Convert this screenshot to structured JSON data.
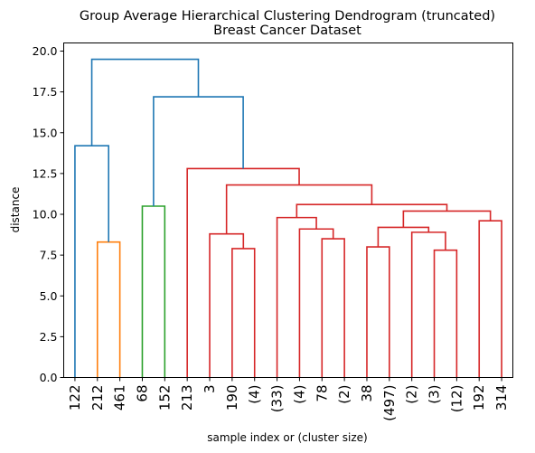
{
  "chart_data": {
    "type": "dendrogram",
    "title": "Group Average Hierarchical Clustering Dendrogram (truncated)",
    "subtitle": "Breast Cancer Dataset",
    "xlabel": "sample index or (cluster size)",
    "ylabel": "distance",
    "ylim": [
      0,
      20.5
    ],
    "yticks": [
      "0.0",
      "2.5",
      "5.0",
      "7.5",
      "10.0",
      "12.5",
      "15.0",
      "17.5",
      "20.0"
    ],
    "ytick_values": [
      0,
      2.5,
      5,
      7.5,
      10,
      12.5,
      15,
      17.5,
      20
    ],
    "leaves": [
      "122",
      "212",
      "461",
      "68",
      "152",
      "213",
      "3",
      "190",
      "(4)",
      "(33)",
      "(4)",
      "78",
      "(2)",
      "38",
      "(497)",
      "(2)",
      "(3)",
      "(12)",
      "192",
      "314"
    ],
    "colors": {
      "above_threshold": "#1f77b4",
      "cluster_orange": "#ff7f0e",
      "cluster_green": "#2ca02c",
      "cluster_red": "#d62728"
    },
    "links": [
      {
        "left": 1,
        "right": 2,
        "left_h": 0,
        "right_h": 0,
        "height": 8.3,
        "color": "cluster_orange"
      },
      {
        "left": 0,
        "right": 1.5,
        "left_h": 0,
        "right_h": 8.3,
        "height": 14.2,
        "color": "above_threshold"
      },
      {
        "left": 3,
        "right": 4,
        "left_h": 0,
        "right_h": 0,
        "height": 10.5,
        "color": "cluster_green"
      },
      {
        "left": 7,
        "right": 8,
        "left_h": 0,
        "right_h": 0,
        "height": 7.9,
        "color": "cluster_red"
      },
      {
        "left": 6,
        "right": 7.5,
        "left_h": 0,
        "right_h": 7.9,
        "height": 8.8,
        "color": "cluster_red"
      },
      {
        "left": 11,
        "right": 12,
        "left_h": 0,
        "right_h": 0,
        "height": 8.5,
        "color": "cluster_red"
      },
      {
        "left": 10,
        "right": 11.5,
        "left_h": 0,
        "right_h": 8.5,
        "height": 9.1,
        "color": "cluster_red"
      },
      {
        "left": 9,
        "right": 10.75,
        "left_h": 0,
        "right_h": 9.1,
        "height": 9.8,
        "color": "cluster_red"
      },
      {
        "left": 13,
        "right": 14,
        "left_h": 0,
        "right_h": 0,
        "height": 8.0,
        "color": "cluster_red"
      },
      {
        "left": 16,
        "right": 17,
        "left_h": 0,
        "right_h": 0,
        "height": 7.8,
        "color": "cluster_red"
      },
      {
        "left": 15,
        "right": 16.5,
        "left_h": 0,
        "right_h": 7.8,
        "height": 8.9,
        "color": "cluster_red"
      },
      {
        "left": 13.5,
        "right": 15.75,
        "left_h": 8.0,
        "right_h": 8.9,
        "height": 9.2,
        "color": "cluster_red"
      },
      {
        "left": 18,
        "right": 19,
        "left_h": 0,
        "right_h": 0,
        "height": 9.6,
        "color": "cluster_red"
      },
      {
        "left": 14.625,
        "right": 18.5,
        "left_h": 9.2,
        "right_h": 9.6,
        "height": 10.2,
        "color": "cluster_red"
      },
      {
        "left": 9.875,
        "right": 16.5625,
        "left_h": 9.8,
        "right_h": 10.2,
        "height": 10.6,
        "color": "cluster_red"
      },
      {
        "left": 6.75,
        "right": 13.21875,
        "left_h": 8.8,
        "right_h": 10.6,
        "height": 11.8,
        "color": "cluster_red"
      },
      {
        "left": 5,
        "right": 9.984375,
        "left_h": 0,
        "right_h": 11.8,
        "height": 12.8,
        "color": "cluster_red"
      },
      {
        "left": 3.5,
        "right": 7.4921875,
        "left_h": 10.5,
        "right_h": 12.8,
        "height": 17.2,
        "color": "above_threshold"
      },
      {
        "left": 0.75,
        "right": 5.49609375,
        "left_h": 14.2,
        "right_h": 17.2,
        "height": 19.5,
        "color": "above_threshold"
      }
    ]
  }
}
